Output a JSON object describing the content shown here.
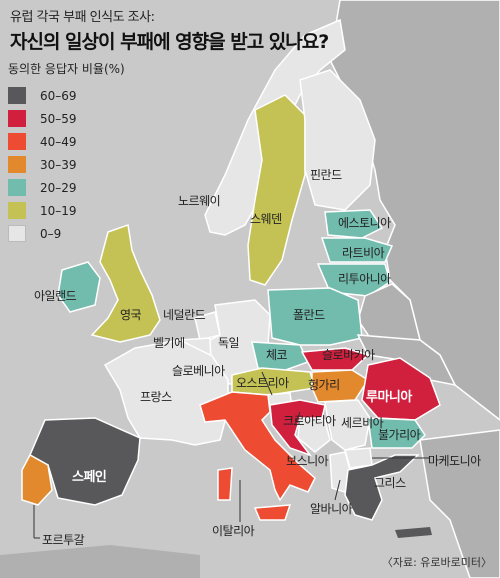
{
  "header": {
    "supertitle": "유럽 각국 부패 인식도 조사:",
    "title": "자신의 일상이 부패에 영향을 받고 있나요?"
  },
  "legend": {
    "title": "동의한 응답자 비율(%)",
    "items": [
      {
        "label": "60–69",
        "color": "#58585a"
      },
      {
        "label": "50–59",
        "color": "#d11f3e"
      },
      {
        "label": "40–49",
        "color": "#ee4b33"
      },
      {
        "label": "30–39",
        "color": "#e2892e"
      },
      {
        "label": "20–29",
        "color": "#72bcae"
      },
      {
        "label": "10–19",
        "color": "#c4c254"
      },
      {
        "label": "0–9",
        "color": "#e6e6e6"
      }
    ]
  },
  "map_data": {
    "countries": [
      {
        "name": "핀란드",
        "range": "0–9"
      },
      {
        "name": "노르웨이",
        "range": "0–9"
      },
      {
        "name": "스웨덴",
        "range": "10–19"
      },
      {
        "name": "에스토니아",
        "range": "20–29"
      },
      {
        "name": "라트비아",
        "range": "20–29"
      },
      {
        "name": "리투아니아",
        "range": "20–29"
      },
      {
        "name": "아일랜드",
        "range": "20–29"
      },
      {
        "name": "영국",
        "range": "10–19"
      },
      {
        "name": "네덜란드",
        "range": "0–9"
      },
      {
        "name": "벨기에",
        "range": "0–9"
      },
      {
        "name": "독일",
        "range": "0–9"
      },
      {
        "name": "폴란드",
        "range": "20–29"
      },
      {
        "name": "체코",
        "range": "20–29"
      },
      {
        "name": "슬로바키아",
        "range": "50–59"
      },
      {
        "name": "오스트리아",
        "range": "10–19"
      },
      {
        "name": "헝가리",
        "range": "30–39"
      },
      {
        "name": "슬로베니아",
        "range": "0–9"
      },
      {
        "name": "루마니아",
        "range": "50–59"
      },
      {
        "name": "프랑스",
        "range": "0–9"
      },
      {
        "name": "크로아티아",
        "range": "50–59"
      },
      {
        "name": "세르비아",
        "range": "0–9"
      },
      {
        "name": "불가리아",
        "range": "20–29"
      },
      {
        "name": "보스니아",
        "range": "0–9"
      },
      {
        "name": "마케도니아",
        "range": "0–9"
      },
      {
        "name": "스페인",
        "range": "60–69"
      },
      {
        "name": "포르투갈",
        "range": "30–39"
      },
      {
        "name": "이탈리아",
        "range": "40–49"
      },
      {
        "name": "알바니아",
        "range": "0–9"
      },
      {
        "name": "그리스",
        "range": "60–69"
      }
    ]
  },
  "source": "〈자료: 유로바로미터〉"
}
